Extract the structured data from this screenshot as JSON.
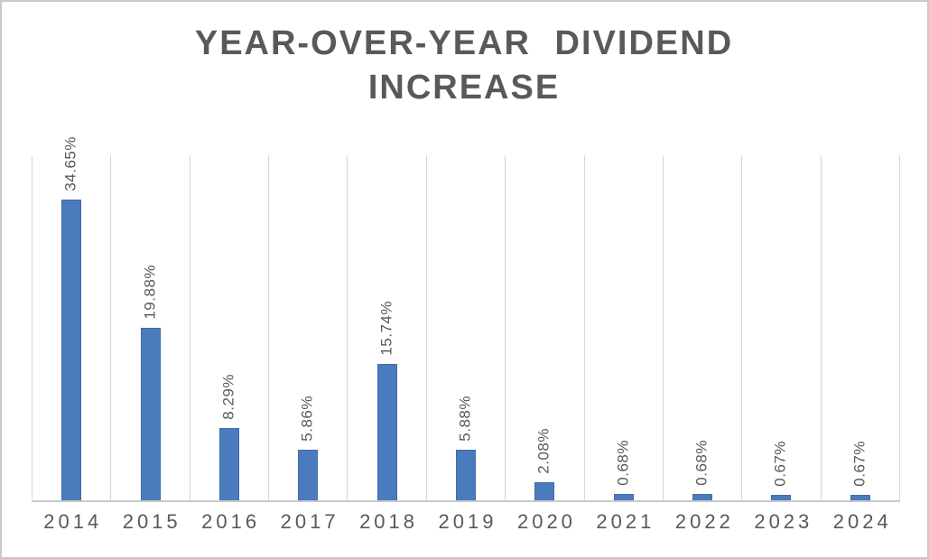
{
  "chart_data": {
    "type": "bar",
    "title": "YEAR-OVER-YEAR DIVIDEND INCREASE",
    "categories": [
      "2014",
      "2015",
      "2016",
      "2017",
      "2018",
      "2019",
      "2020",
      "2021",
      "2022",
      "2023",
      "2024"
    ],
    "values": [
      34.65,
      19.88,
      8.29,
      5.86,
      15.74,
      5.88,
      2.08,
      0.68,
      0.68,
      0.67,
      0.67
    ],
    "data_labels": [
      "34.65%",
      "19.88%",
      "8.29%",
      "5.86%",
      "15.74%",
      "5.88%",
      "2.08%",
      "0.68%",
      "0.68%",
      "0.67%",
      "0.67%"
    ],
    "data_label_rotation_deg": -90,
    "xlabel": "",
    "ylabel": "",
    "ylim": [
      0,
      40
    ],
    "y_axis_visible": false,
    "gridlines": "vertical-category-boundaries",
    "legend_position": "none",
    "colors": {
      "bar_fill": "#4a7cbd",
      "bar_border": "#3e6ca9",
      "gridline": "#d6d6d6",
      "axis_line": "#c9c9c9",
      "text": "#595959",
      "title": "#595959",
      "background": "#ffffff",
      "frame_border": "#c9c9c9"
    }
  }
}
